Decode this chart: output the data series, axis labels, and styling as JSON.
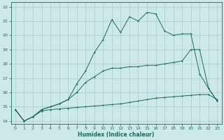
{
  "xlabel": "Humidex (Indice chaleur)",
  "background_color": "#cde8e8",
  "grid_color": "#aacccc",
  "line_color": "#1a6b5a",
  "xlim": [
    -0.5,
    23.5
  ],
  "ylim": [
    13.8,
    22.3
  ],
  "xticks": [
    0,
    1,
    2,
    3,
    4,
    5,
    6,
    7,
    8,
    9,
    10,
    11,
    12,
    13,
    14,
    15,
    16,
    17,
    18,
    19,
    20,
    21,
    22,
    23
  ],
  "yticks": [
    14,
    15,
    16,
    17,
    18,
    19,
    20,
    21,
    22
  ],
  "line_flat_x": [
    0,
    1,
    2,
    3,
    4,
    5,
    6,
    7,
    8,
    9,
    10,
    11,
    12,
    13,
    14,
    15,
    16,
    17,
    18,
    19,
    20,
    21,
    22,
    23
  ],
  "line_flat_y": [
    14.8,
    14.0,
    14.3,
    14.7,
    14.8,
    14.85,
    14.9,
    14.95,
    15.0,
    15.05,
    15.1,
    15.15,
    15.2,
    15.3,
    15.4,
    15.5,
    15.6,
    15.65,
    15.7,
    15.75,
    15.8,
    15.85,
    15.85,
    15.5
  ],
  "line_mid_x": [
    0,
    1,
    2,
    3,
    4,
    5,
    6,
    7,
    8,
    9,
    10,
    11,
    12,
    13,
    14,
    15,
    16,
    17,
    18,
    19,
    20,
    21,
    22,
    23
  ],
  "line_mid_y": [
    14.8,
    14.0,
    14.3,
    14.8,
    15.0,
    15.2,
    15.5,
    16.0,
    16.7,
    17.1,
    17.5,
    17.7,
    17.7,
    17.8,
    17.8,
    17.9,
    17.9,
    18.0,
    18.1,
    18.2,
    19.0,
    19.0,
    16.3,
    15.4
  ],
  "line_top_x": [
    0,
    1,
    2,
    3,
    4,
    5,
    6,
    7,
    8,
    9,
    10,
    11,
    12,
    13,
    14,
    15,
    16,
    17,
    18,
    19,
    20,
    21,
    22,
    23
  ],
  "line_top_y": [
    14.8,
    14.0,
    14.3,
    14.8,
    15.0,
    15.2,
    15.5,
    16.6,
    17.5,
    18.8,
    19.7,
    21.1,
    20.2,
    21.3,
    21.0,
    21.6,
    21.5,
    20.3,
    20.0,
    20.1,
    20.1,
    17.3,
    16.3,
    15.4
  ]
}
